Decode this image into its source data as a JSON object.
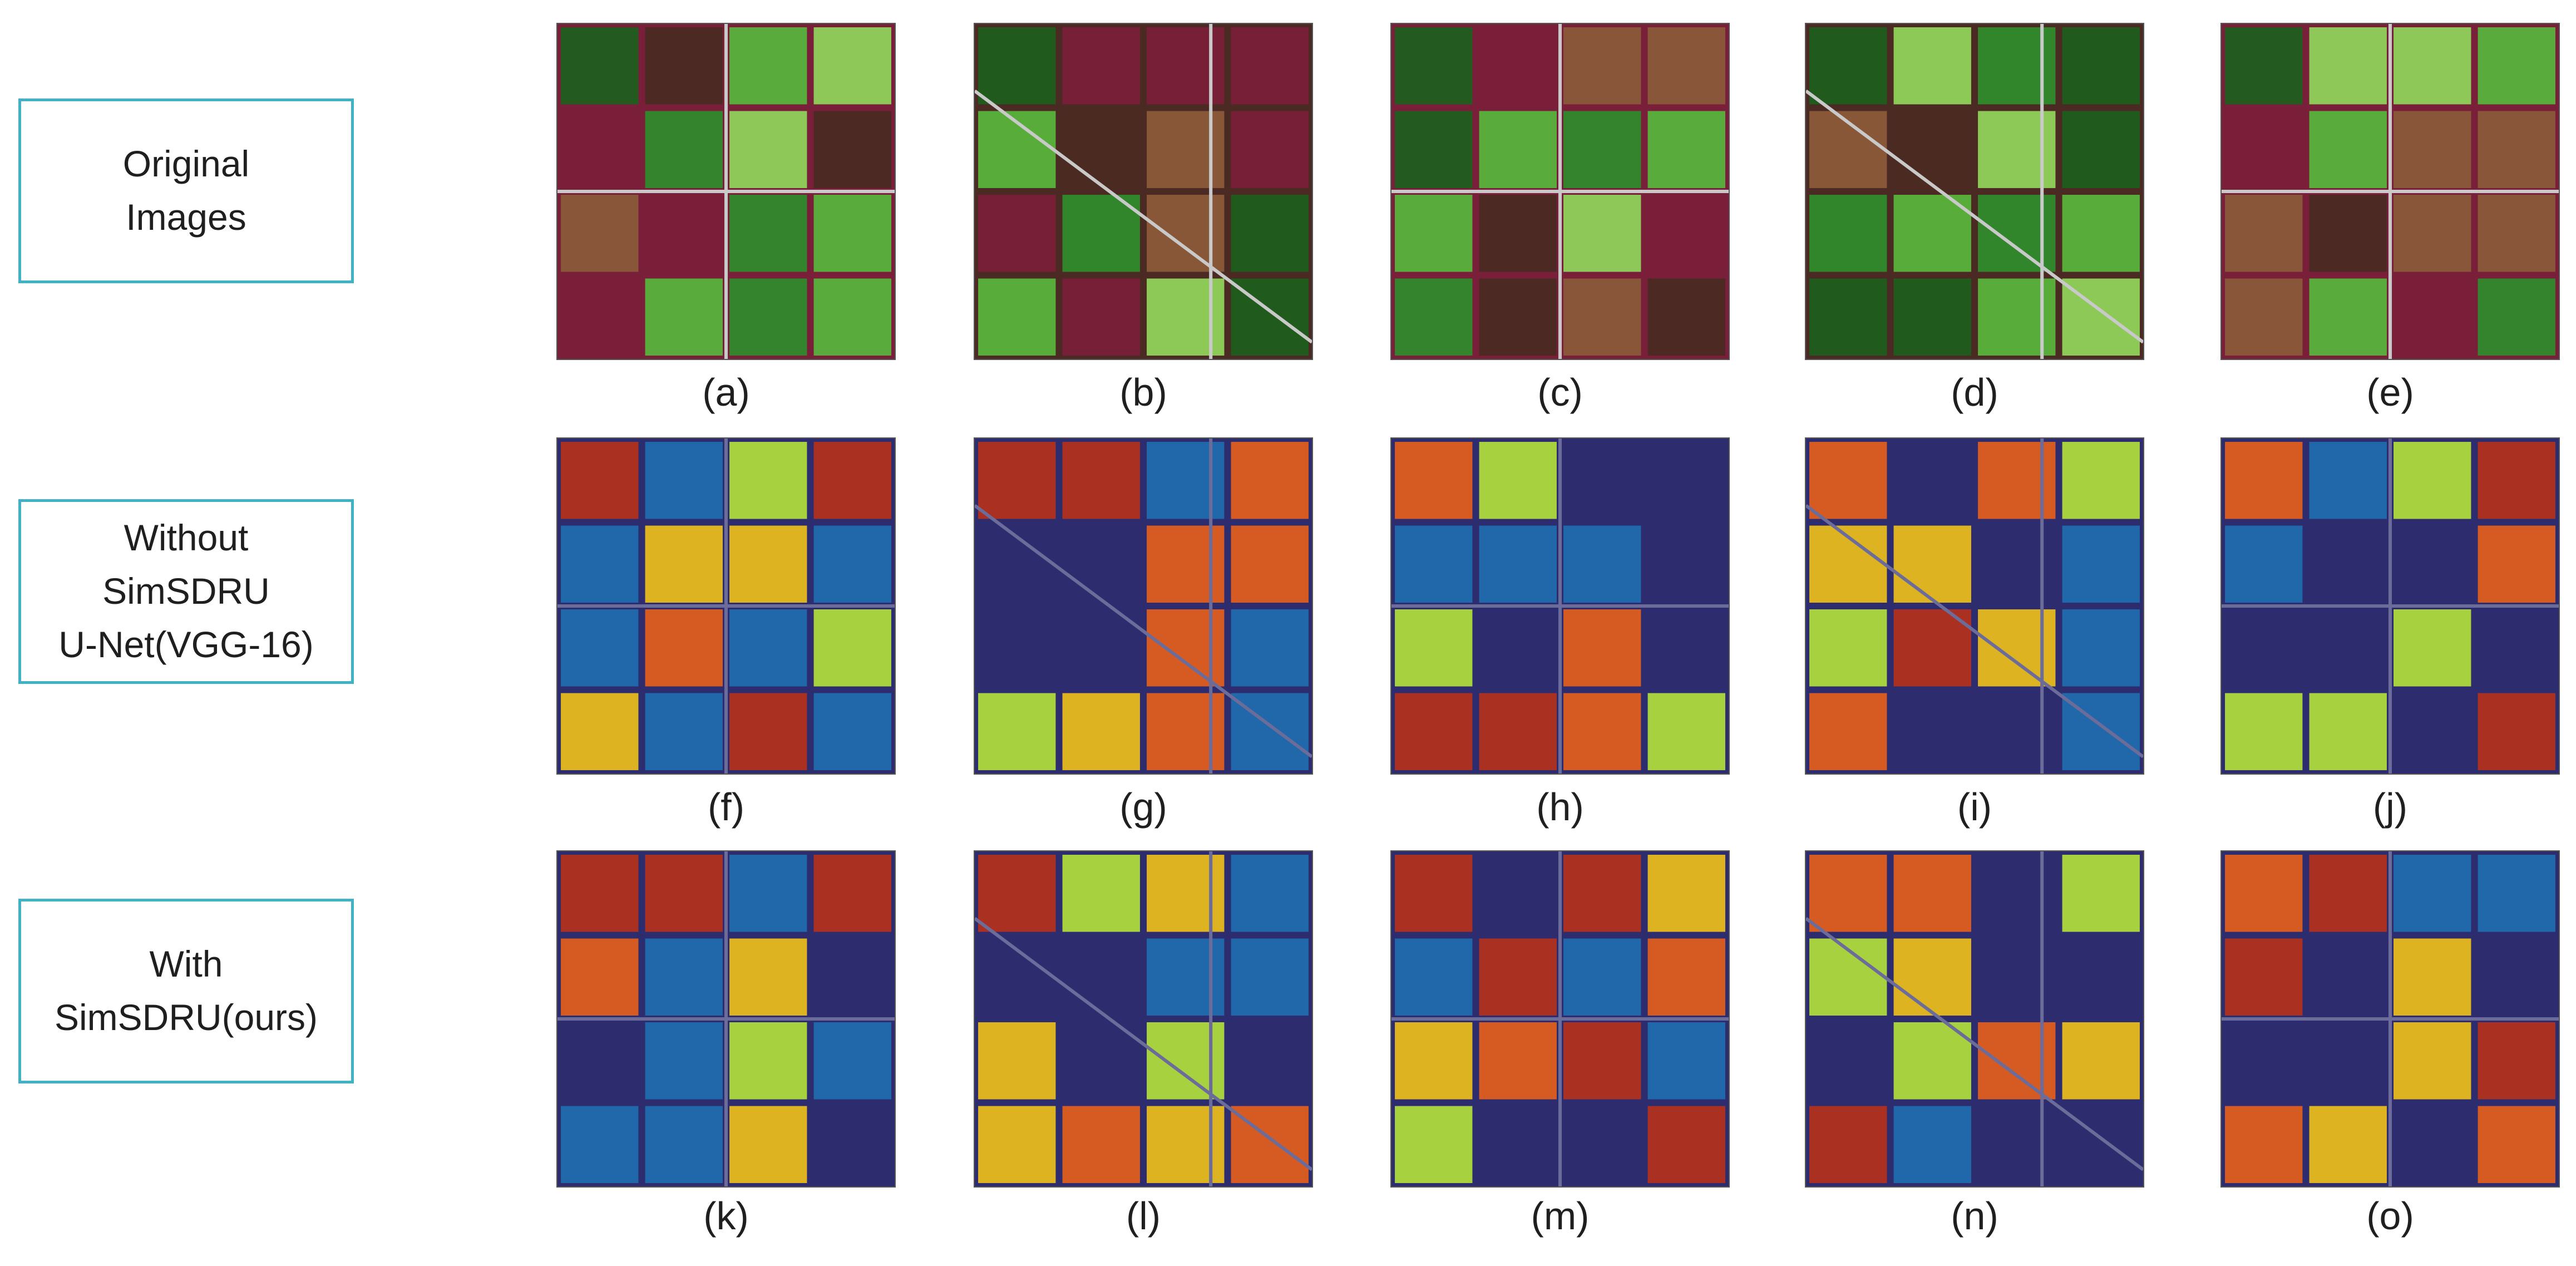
{
  "row_labels": [
    "Original\nImages",
    "Without\nSimSDRU\nU-Net(VGG-16)",
    "With\nSimSDRU(ours)"
  ],
  "panel_captions": [
    [
      "(a)",
      "(b)",
      "(c)",
      "(d)",
      "(e)"
    ],
    [
      "(f)",
      "(g)",
      "(h)",
      "(i)",
      "(j)"
    ],
    [
      "(k)",
      "(l)",
      "(m)",
      "(n)",
      "(o)"
    ]
  ],
  "colors": {
    "label_border": "#3fb2c6",
    "satellite_palette": [
      "#1e5e1e",
      "#2f8a2b",
      "#57b33c",
      "#8fd25a",
      "#7a1f3a",
      "#4a2a22",
      "#8a5a3a",
      "#c9c9c9"
    ],
    "heatmap_palette": [
      "#2c2c6e",
      "#1f6fb0",
      "#29c6c6",
      "#b6e33a",
      "#f2c21a",
      "#e8611a",
      "#b8321a"
    ]
  }
}
